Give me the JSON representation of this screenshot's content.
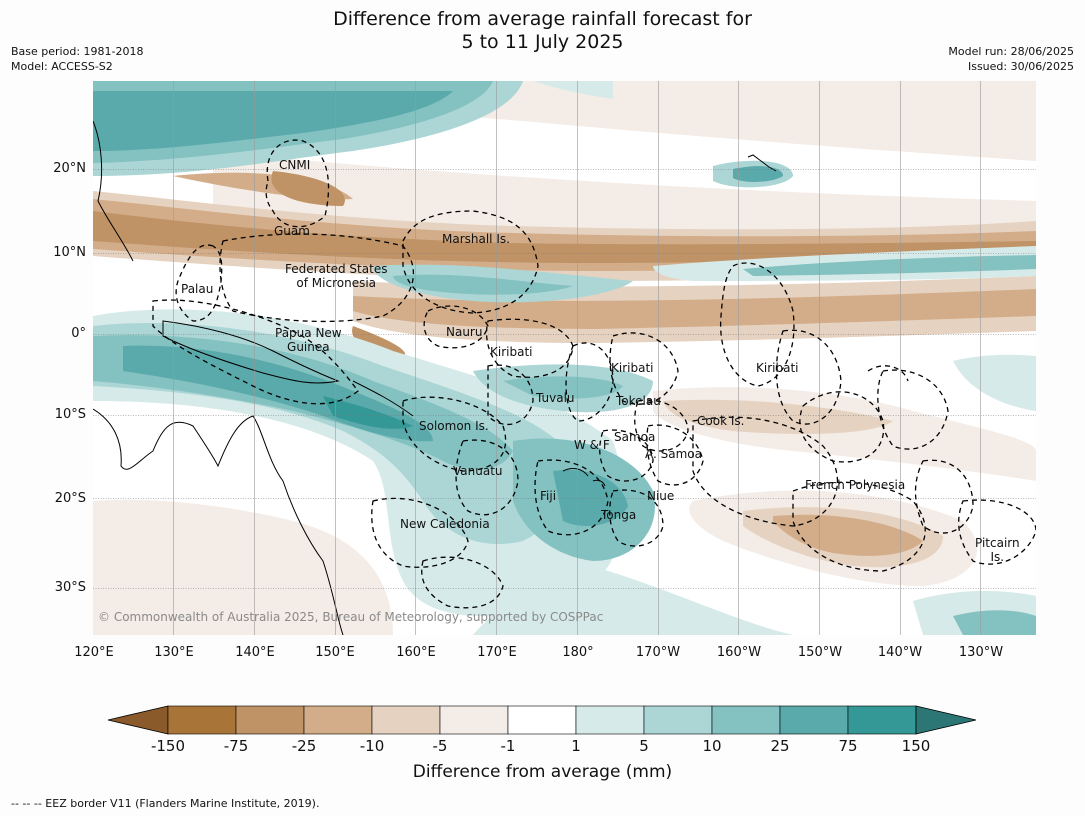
{
  "title_line1": "Difference from average rainfall forecast for",
  "title_line2": "5 to 11 July 2025",
  "base_period": "Base period: 1981-2018",
  "model": "Model: ACCESS-S2",
  "model_run": "Model run: 28/06/2025",
  "issued": "Issued: 30/06/2025",
  "lat_labels": [
    "20°N",
    "10°N",
    "0°",
    "10°S",
    "20°S",
    "30°S"
  ],
  "lon_labels": [
    "120°E",
    "130°E",
    "140°E",
    "150°E",
    "160°E",
    "170°E",
    "180°",
    "170°W",
    "160°W",
    "150°W",
    "140°W",
    "130°W"
  ],
  "places": {
    "cnmi": "CNMI",
    "guam": "Guam",
    "marshall": "Marshall Is.",
    "fsm_line1": "Federated States",
    "fsm_line2": "of Micronesia",
    "palau": "Palau",
    "png_line1": "Papua New",
    "png_line2": "Guinea",
    "nauru": "Nauru",
    "kiribati_w": "Kiribati",
    "kiribati_c": "Kiribati",
    "kiribati_e": "Kiribati",
    "tuvalu": "Tuvalu",
    "tokelau": "Tokelau",
    "cook": "Cook Is.",
    "solomon": "Solomon Is.",
    "wf": "W & F",
    "samoa": "Samoa",
    "asamoa": "A. Samoa",
    "vanuatu": "Vanuatu",
    "fiji": "Fiji",
    "niue": "Niue",
    "tonga": "Tonga",
    "french_polynesia": "French Polynesia",
    "new_caledonia": "New Caledonia",
    "pitcairn_line1": "Pitcairn",
    "pitcairn_line2": "Is."
  },
  "copyright": "© Commonwealth of Australia 2025, Bureau of Meteorology, supported by COSPPac",
  "colorbar": {
    "ticks": [
      "-150",
      "-75",
      "-25",
      "-10",
      "-5",
      "-1",
      "1",
      "5",
      "10",
      "25",
      "75",
      "150"
    ],
    "colors": [
      "#8b5a2b",
      "#a97438",
      "#bf9366",
      "#d3ad8a",
      "#e6d2c0",
      "#f4ece6",
      "#ffffff",
      "#d6ebe9",
      "#acd6d5",
      "#84c1c1",
      "#5aaaab",
      "#339896",
      "#2c7775"
    ],
    "label": "Difference from average (mm)"
  },
  "footer": "--  --  -- EEZ border V11 (Flanders Marine Institute, 2019)."
}
